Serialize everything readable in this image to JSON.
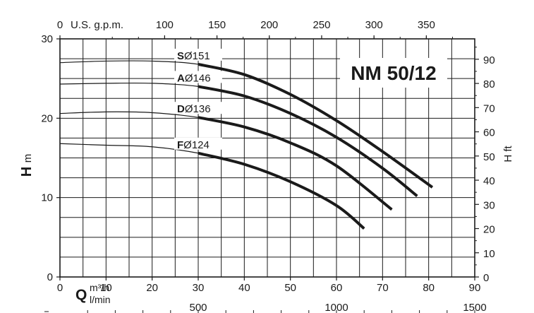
{
  "chart_data": {
    "type": "line",
    "title": "NM 50/12",
    "x_top_label": "U.S. g.p.m.",
    "x_top_ticks": [
      "0",
      "100",
      "150",
      "200",
      "250",
      "300",
      "350"
    ],
    "x_bottom_symbol": "Q",
    "x_bottom_unit_m3h": "m³/h",
    "x_bottom_unit_lmin": "l/min",
    "x_bottom_ticks": [
      "0",
      "10",
      "20",
      "30",
      "40",
      "50",
      "60",
      "70",
      "80",
      "90"
    ],
    "x_lmin_ticks": [
      "500",
      "1000",
      "1500"
    ],
    "y_left_symbol": "H",
    "y_left_unit": "m",
    "y_left_ticks": [
      "0",
      "10",
      "20",
      "30"
    ],
    "y_right_label": "H ft",
    "y_right_ticks": [
      "0",
      "10",
      "20",
      "30",
      "40",
      "50",
      "60",
      "70",
      "80",
      "90"
    ],
    "xlim": [
      0,
      90
    ],
    "ylim": [
      0,
      30
    ],
    "grid": true,
    "series": [
      {
        "letter": "S",
        "diameter": "Ø151",
        "x": [
          0,
          10,
          20,
          30,
          40,
          50,
          60,
          70,
          80.8
        ],
        "y": [
          27.0,
          27.2,
          27.2,
          26.8,
          25.5,
          23.0,
          19.7,
          15.8,
          11.3
        ]
      },
      {
        "letter": "A",
        "diameter": "Ø146",
        "x": [
          0,
          10,
          20,
          30,
          40,
          50,
          60,
          70,
          77.5
        ],
        "y": [
          24.3,
          24.4,
          24.4,
          24.0,
          22.8,
          20.6,
          17.6,
          13.7,
          10.2
        ]
      },
      {
        "letter": "D",
        "diameter": "Ø136",
        "x": [
          0,
          10,
          20,
          30,
          40,
          50,
          60,
          72
        ],
        "y": [
          20.6,
          20.8,
          20.7,
          20.1,
          18.9,
          16.9,
          14.0,
          8.5
        ]
      },
      {
        "letter": "F",
        "diameter": "Ø124",
        "x": [
          0,
          10,
          20,
          30,
          40,
          50,
          60,
          66
        ],
        "y": [
          16.8,
          16.6,
          16.4,
          15.6,
          14.2,
          12.0,
          9.0,
          6.1
        ]
      }
    ]
  }
}
